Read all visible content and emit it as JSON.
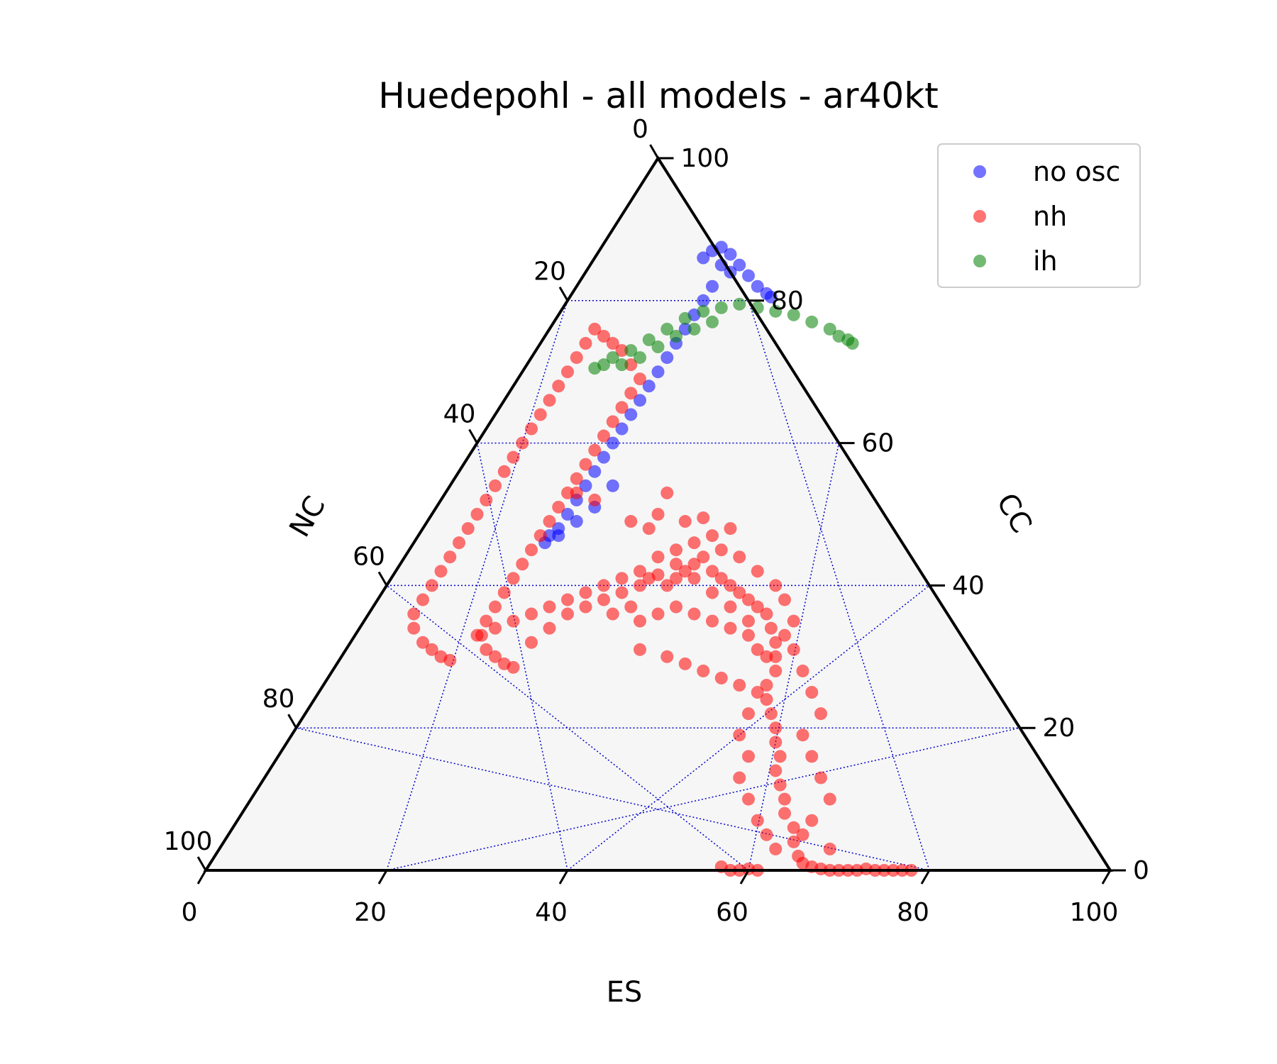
{
  "chart_data": {
    "type": "scatter",
    "subtype": "ternary",
    "title": "Huedepohl - all models - ar40kt",
    "axes": {
      "bottom": {
        "label": "ES",
        "ticks": [
          "0",
          "20",
          "40",
          "60",
          "80",
          "100"
        ]
      },
      "left": {
        "label": "NC",
        "ticks": [
          "0",
          "20",
          "40",
          "60",
          "80",
          "100"
        ]
      },
      "right": {
        "label": "CC",
        "ticks": [
          "0",
          "20",
          "40",
          "60",
          "80",
          "100"
        ]
      },
      "range": [
        0,
        100
      ],
      "grid_step": 20
    },
    "grid": true,
    "legend": {
      "placement": "top-right",
      "entries": [
        "no osc",
        "nh",
        "ih"
      ]
    },
    "series": [
      {
        "name": "no osc",
        "color": "#0000ff",
        "points": [
          [
            5,
            86
          ],
          [
            6,
            87
          ],
          [
            7,
            87.5
          ],
          [
            8,
            86.5
          ],
          [
            9,
            85
          ],
          [
            10,
            83.5
          ],
          [
            11,
            82
          ],
          [
            12,
            81
          ],
          [
            12.5,
            80.5
          ],
          [
            7,
            85
          ],
          [
            8,
            84
          ],
          [
            6,
            82
          ],
          [
            5,
            80
          ],
          [
            4,
            78
          ],
          [
            3,
            76
          ],
          [
            2,
            74
          ],
          [
            1,
            72
          ],
          [
            0,
            70
          ],
          [
            -1,
            68
          ],
          [
            -2,
            66
          ],
          [
            -3,
            64
          ],
          [
            -4,
            62
          ],
          [
            -5,
            60
          ],
          [
            -6,
            58
          ],
          [
            -7,
            56
          ],
          [
            -8,
            54
          ],
          [
            -9,
            52
          ],
          [
            -10,
            50
          ],
          [
            -11,
            48
          ],
          [
            -12,
            47
          ],
          [
            -12.5,
            46
          ],
          [
            -11,
            47
          ],
          [
            -9,
            49
          ],
          [
            -7,
            51
          ],
          [
            -5,
            54
          ]
        ]
      },
      {
        "name": "nh",
        "color": "#ff0000",
        "points": [
          [
            -7,
            76
          ],
          [
            -6,
            75
          ],
          [
            -5,
            74
          ],
          [
            -4,
            73
          ],
          [
            -3,
            71
          ],
          [
            -2,
            69
          ],
          [
            -3,
            67
          ],
          [
            -4,
            65
          ],
          [
            -5,
            63
          ],
          [
            -6,
            61
          ],
          [
            -7,
            59
          ],
          [
            -8,
            57
          ],
          [
            -9,
            55
          ],
          [
            -10,
            53
          ],
          [
            -11,
            51
          ],
          [
            -12,
            49
          ],
          [
            -13,
            47
          ],
          [
            -14,
            45
          ],
          [
            -15,
            43
          ],
          [
            -16,
            41
          ],
          [
            -17,
            39
          ],
          [
            -18,
            37
          ],
          [
            -19,
            35
          ],
          [
            -19.5,
            33
          ],
          [
            -19,
            31
          ],
          [
            -18,
            30
          ],
          [
            -17,
            29
          ],
          [
            -16,
            28.5
          ],
          [
            -8,
            74
          ],
          [
            -9,
            72
          ],
          [
            -10,
            70
          ],
          [
            -11,
            68
          ],
          [
            -12,
            66
          ],
          [
            -13,
            64
          ],
          [
            -14,
            62
          ],
          [
            -15,
            60
          ],
          [
            -16,
            58
          ],
          [
            -17,
            56
          ],
          [
            -18,
            54
          ],
          [
            -19,
            52
          ],
          [
            -20,
            50
          ],
          [
            -21,
            48
          ],
          [
            -22,
            46
          ],
          [
            -23,
            44
          ],
          [
            -24,
            42
          ],
          [
            -25,
            40
          ],
          [
            -26,
            38
          ],
          [
            -27,
            36
          ],
          [
            -27,
            34
          ],
          [
            -26,
            32
          ],
          [
            -25,
            31
          ],
          [
            -24,
            30
          ],
          [
            -23,
            29.5
          ],
          [
            -14,
            32
          ],
          [
            -12,
            34
          ],
          [
            -10,
            36
          ],
          [
            -8,
            37
          ],
          [
            -6,
            38
          ],
          [
            -4,
            39
          ],
          [
            -2,
            40
          ],
          [
            -1,
            41
          ],
          [
            0,
            41.5
          ],
          [
            1,
            40
          ],
          [
            2,
            41
          ],
          [
            3,
            42
          ],
          [
            4,
            43
          ],
          [
            5,
            44
          ],
          [
            6,
            42
          ],
          [
            7,
            41
          ],
          [
            8,
            40
          ],
          [
            9,
            39
          ],
          [
            10,
            38
          ],
          [
            11,
            37
          ],
          [
            12,
            36
          ],
          [
            12.5,
            34
          ],
          [
            13,
            32
          ],
          [
            13,
            30
          ],
          [
            13,
            28
          ],
          [
            12,
            26
          ],
          [
            12,
            24
          ],
          [
            12.5,
            22
          ],
          [
            13,
            20
          ],
          [
            13,
            18
          ],
          [
            13.5,
            16
          ],
          [
            13,
            14
          ],
          [
            13.5,
            12
          ],
          [
            14,
            10
          ],
          [
            14,
            8
          ],
          [
            15,
            6
          ],
          [
            15,
            4
          ],
          [
            15.5,
            2
          ],
          [
            16,
            1
          ],
          [
            17,
            0.5
          ],
          [
            18,
            0.2
          ],
          [
            19,
            0
          ],
          [
            20,
            0
          ],
          [
            21,
            0
          ],
          [
            22,
            0
          ],
          [
            23,
            0.2
          ],
          [
            24,
            0
          ],
          [
            25,
            0
          ],
          [
            26,
            0
          ],
          [
            27,
            0
          ],
          [
            28,
            0
          ],
          [
            7,
            0.5
          ],
          [
            8,
            0
          ],
          [
            9,
            0
          ],
          [
            10,
            0.2
          ],
          [
            11,
            0
          ],
          [
            -5,
            36
          ],
          [
            -3,
            37
          ],
          [
            -2,
            35
          ],
          [
            0,
            36
          ],
          [
            2,
            37
          ],
          [
            4,
            36
          ],
          [
            6,
            35
          ],
          [
            8,
            34
          ],
          [
            10,
            33
          ],
          [
            -20,
            33
          ],
          [
            -18,
            34
          ],
          [
            -16,
            35
          ],
          [
            -14,
            36
          ],
          [
            -12,
            37
          ],
          [
            -10,
            38
          ],
          [
            -8,
            39
          ],
          [
            -6,
            40
          ],
          [
            -4,
            41
          ],
          [
            -2,
            42
          ],
          [
            0,
            44
          ],
          [
            2,
            45
          ],
          [
            4,
            46
          ],
          [
            6,
            47
          ],
          [
            8,
            48
          ],
          [
            3,
            49
          ],
          [
            5,
            49.5
          ],
          [
            -7,
            52
          ],
          [
            -9,
            53
          ],
          [
            1,
            53
          ],
          [
            0,
            50
          ],
          [
            -3,
            49
          ],
          [
            -1,
            48
          ],
          [
            2,
            43
          ],
          [
            4,
            41
          ],
          [
            6,
            39
          ],
          [
            8,
            37
          ],
          [
            10,
            35
          ],
          [
            15,
            31
          ],
          [
            16,
            28
          ],
          [
            17,
            25
          ],
          [
            18,
            22
          ],
          [
            16,
            19
          ],
          [
            17,
            16
          ],
          [
            18,
            13
          ],
          [
            19,
            10
          ],
          [
            17,
            7
          ],
          [
            16,
            5
          ],
          [
            19,
            3
          ],
          [
            11,
            25
          ],
          [
            10,
            22
          ],
          [
            9,
            19
          ],
          [
            10,
            16
          ],
          [
            9,
            13
          ],
          [
            10,
            10
          ],
          [
            11,
            7
          ],
          [
            12,
            5
          ],
          [
            13,
            3
          ],
          [
            -2,
            31
          ],
          [
            1,
            30
          ],
          [
            3,
            29
          ],
          [
            5,
            28
          ],
          [
            7,
            27
          ],
          [
            9,
            26
          ],
          [
            12,
            30
          ],
          [
            11,
            31
          ],
          [
            14,
            33
          ],
          [
            15,
            35
          ],
          [
            14,
            38
          ],
          [
            13,
            40
          ],
          [
            11,
            42
          ],
          [
            9,
            44
          ],
          [
            7,
            45
          ]
        ]
      },
      {
        "name": "ih",
        "color": "#008000",
        "points": [
          [
            -5,
            72
          ],
          [
            -3,
            73
          ],
          [
            -1,
            74.5
          ],
          [
            1,
            76
          ],
          [
            3,
            77.5
          ],
          [
            5,
            78.5
          ],
          [
            7,
            79
          ],
          [
            9,
            79.5
          ],
          [
            11,
            79
          ],
          [
            13,
            78.5
          ],
          [
            15,
            78
          ],
          [
            17,
            77
          ],
          [
            19,
            76
          ],
          [
            20,
            75
          ],
          [
            21,
            74.5
          ],
          [
            21.5,
            74
          ],
          [
            -4,
            71
          ],
          [
            -2,
            72
          ],
          [
            0,
            73.5
          ],
          [
            2,
            75
          ],
          [
            4,
            76
          ],
          [
            6,
            77
          ],
          [
            -6,
            71
          ],
          [
            -7,
            70.5
          ]
        ]
      }
    ]
  }
}
